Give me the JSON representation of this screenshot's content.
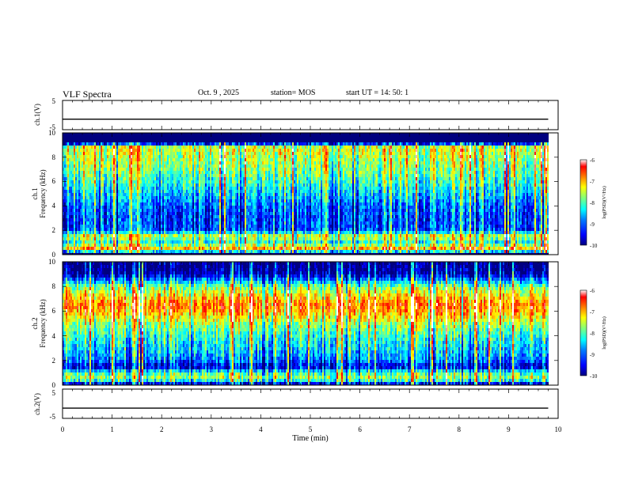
{
  "header": {
    "title": "VLF Spectra",
    "date": "Oct. 9 , 2025",
    "station": "station= MOS",
    "start": "start UT = 14: 50: 1"
  },
  "colors": {
    "colormap": [
      "#00007f",
      "#0000ff",
      "#007fff",
      "#00ffff",
      "#7fff7f",
      "#ffff00",
      "#ff7f00",
      "#ff0000",
      "#ffffff"
    ],
    "trace": "#000000"
  },
  "chart_data": [
    {
      "type": "line",
      "ylabel": "ch.1(V)",
      "ylim": [
        -5,
        5
      ],
      "y_ticklabels": [
        "5",
        "-5"
      ],
      "xlim": [
        0,
        10
      ],
      "series": [
        {
          "x": [
            0,
            9.8
          ],
          "values": [
            -1.4,
            -1.4
          ]
        }
      ]
    },
    {
      "type": "heatmap",
      "ylabel": "ch.1",
      "ylabel2": "Frequency (kHz)",
      "ylim": [
        0,
        10
      ],
      "y_ticklabels": [
        "0",
        "2",
        "4",
        "6",
        "8",
        "10"
      ],
      "xlim": [
        0,
        10
      ],
      "data_xlim": [
        0,
        9.8
      ],
      "profile_freq_khz": [
        0,
        0.5,
        1,
        1.5,
        2,
        3,
        4,
        5,
        6,
        7,
        8,
        8.8,
        9.2,
        10
      ],
      "profile_log_psd": [
        -10,
        -7.2,
        -8.4,
        -7.6,
        -9.2,
        -9.3,
        -9.1,
        -8.7,
        -8.3,
        -8.0,
        -7.8,
        -7.6,
        -10,
        -10
      ],
      "colorbar": {
        "label": "log(PSD)(V²/Hz)",
        "range": [
          -10,
          -6
        ],
        "ticklabels": [
          "-6",
          "-7",
          "-8",
          "-9",
          "-10"
        ]
      }
    },
    {
      "type": "heatmap",
      "ylabel": "ch.2",
      "ylabel2": "Frequency (kHz)",
      "ylim": [
        0,
        10
      ],
      "y_ticklabels": [
        "0",
        "2",
        "4",
        "6",
        "8",
        "10"
      ],
      "xlim": [
        0,
        10
      ],
      "data_xlim": [
        0,
        9.8
      ],
      "profile_freq_khz": [
        0,
        0.5,
        1,
        1.5,
        2,
        3,
        4,
        5,
        6,
        6.5,
        7,
        8,
        9,
        10
      ],
      "profile_log_psd": [
        -10,
        -7.8,
        -8.2,
        -9.7,
        -9.0,
        -8.6,
        -8.3,
        -7.8,
        -7.1,
        -6.9,
        -7.2,
        -8.0,
        -9.8,
        -10
      ],
      "colorbar": {
        "label": "log(PSD)(V²/Hz)",
        "range": [
          -10,
          -6
        ],
        "ticklabels": [
          "-6",
          "-7",
          "-8",
          "-9",
          "-10"
        ]
      }
    },
    {
      "type": "line",
      "ylabel": "ch.2(V)",
      "xlabel": "Time (min)",
      "ylim": [
        -5,
        5
      ],
      "y_ticklabels": [
        "5",
        "-5"
      ],
      "xlim": [
        0,
        10
      ],
      "x_ticklabels": [
        "0",
        "1",
        "2",
        "3",
        "4",
        "5",
        "6",
        "7",
        "8",
        "9",
        "10"
      ],
      "series": [
        {
          "x": [
            0,
            9.8
          ],
          "values": [
            -1.5,
            -1.5
          ]
        }
      ]
    }
  ]
}
